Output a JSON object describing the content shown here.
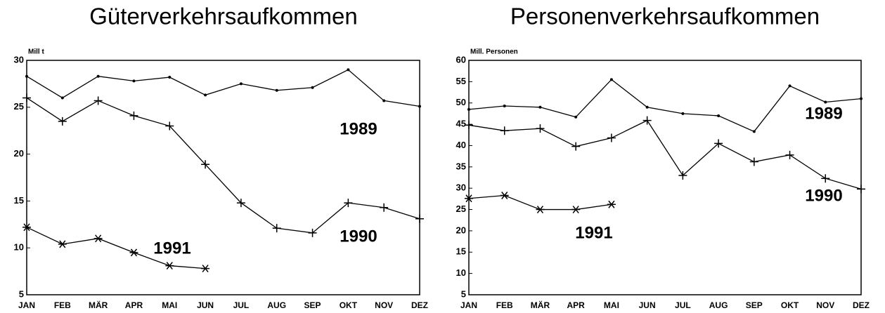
{
  "chart_data": [
    {
      "type": "line",
      "title": "Güterverkehrsaufkommen",
      "y_label": "Mill t",
      "categories": [
        "JAN",
        "FEB",
        "MÄR",
        "APR",
        "MAI",
        "JUN",
        "JUL",
        "AUG",
        "SEP",
        "OKT",
        "NOV",
        "DEZ"
      ],
      "ylim": [
        5,
        30
      ],
      "yticks": [
        5,
        10,
        15,
        20,
        25,
        30
      ],
      "series": [
        {
          "name": "1989",
          "color": "#000000",
          "marker": "dot",
          "values": [
            28.3,
            26.0,
            28.3,
            27.8,
            28.2,
            26.3,
            27.5,
            26.8,
            27.1,
            29.0,
            25.7,
            25.1
          ]
        },
        {
          "name": "1990",
          "color": "#000000",
          "marker": "plus",
          "values": [
            26.0,
            23.5,
            25.7,
            24.1,
            23.0,
            18.9,
            14.8,
            12.1,
            11.6,
            14.8,
            14.3,
            13.1
          ]
        },
        {
          "name": "1991",
          "color": "#000000",
          "marker": "star",
          "values": [
            12.2,
            10.4,
            11.0,
            9.5,
            8.1,
            7.8,
            null,
            null,
            null,
            null,
            null,
            null
          ]
        }
      ]
    },
    {
      "type": "line",
      "title": "Personenverkehrsaufkommen",
      "y_label": "Mill. Personen",
      "categories": [
        "JAN",
        "FEB",
        "MÄR",
        "APR",
        "MAI",
        "JUN",
        "JUL",
        "AUG",
        "SEP",
        "OKT",
        "NOV",
        "DEZ"
      ],
      "ylim": [
        5,
        60
      ],
      "yticks": [
        5,
        10,
        15,
        20,
        25,
        30,
        35,
        40,
        45,
        50,
        55,
        60
      ],
      "series": [
        {
          "name": "1989",
          "color": "#000000",
          "marker": "dot",
          "values": [
            48.5,
            49.3,
            49.0,
            46.7,
            55.5,
            49.0,
            47.5,
            47.0,
            43.3,
            54.0,
            50.2,
            51.0
          ]
        },
        {
          "name": "1990",
          "color": "#000000",
          "marker": "plus",
          "values": [
            44.8,
            43.5,
            44.0,
            39.8,
            41.8,
            45.9,
            33.0,
            40.5,
            36.2,
            37.8,
            32.3,
            29.8
          ]
        },
        {
          "name": "1991",
          "color": "#000000",
          "marker": "star",
          "values": [
            27.6,
            28.3,
            25.0,
            25.0,
            26.2,
            null,
            null,
            null,
            null,
            null,
            null,
            null
          ]
        }
      ]
    }
  ]
}
